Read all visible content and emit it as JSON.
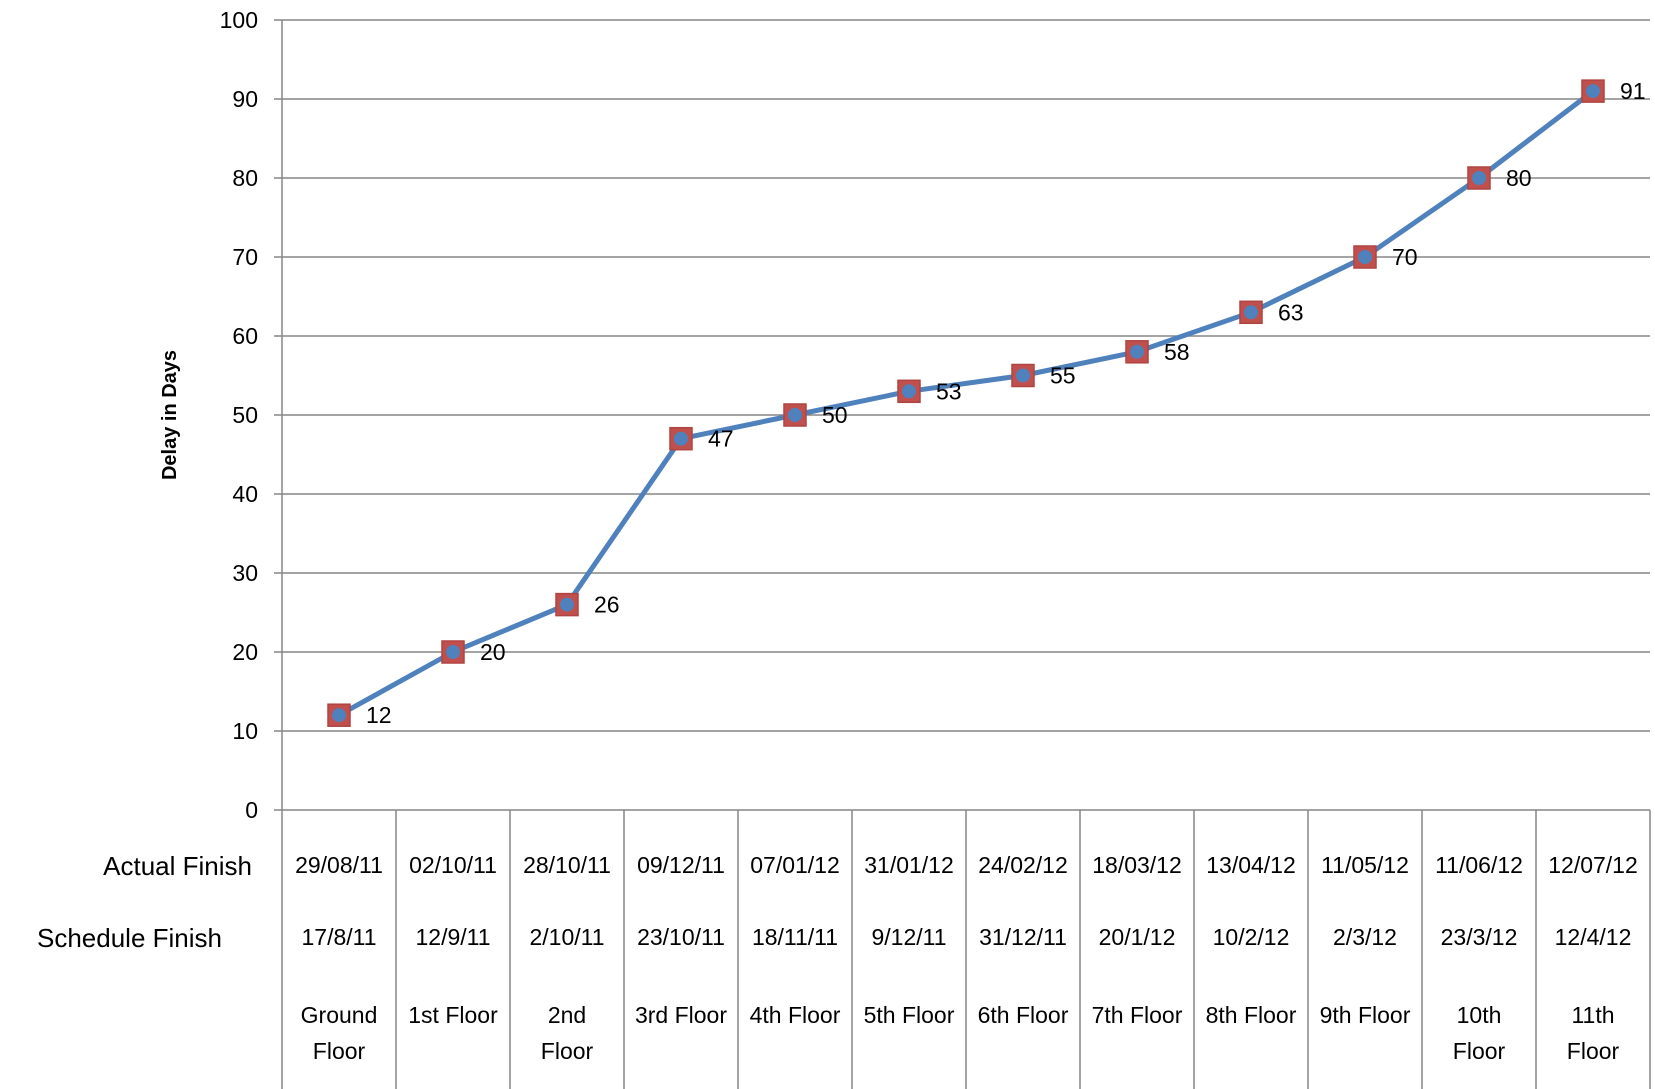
{
  "chart_data": {
    "type": "line",
    "ylabel": "Delay in Days",
    "xlabel": "",
    "ylim": [
      0,
      100
    ],
    "yticks": [
      0,
      10,
      20,
      30,
      40,
      50,
      60,
      70,
      80,
      90,
      100
    ],
    "grid": true,
    "categories": [
      "Ground Floor",
      "1st Floor",
      "2nd Floor",
      "3rd Floor",
      "4th Floor",
      "5th Floor",
      "6th Floor",
      "7th Floor",
      "8th Floor",
      "9th Floor",
      "10th Floor",
      "11th Floor"
    ],
    "category_lines": [
      [
        "Ground",
        "Floor"
      ],
      [
        "1st Floor"
      ],
      [
        "2nd",
        "Floor"
      ],
      [
        "3rd Floor"
      ],
      [
        "4th Floor"
      ],
      [
        "5th Floor"
      ],
      [
        "6th Floor"
      ],
      [
        "7th Floor"
      ],
      [
        "8th Floor"
      ],
      [
        "9th Floor"
      ],
      [
        "10th",
        "Floor"
      ],
      [
        "11th",
        "Floor"
      ]
    ],
    "series": [
      {
        "values": [
          12,
          20,
          26,
          47,
          50,
          53,
          55,
          58,
          63,
          70,
          80,
          91
        ]
      }
    ],
    "table_rows": [
      {
        "header": "Actual Finish",
        "values": [
          "29/08/11",
          "02/10/11",
          "28/10/11",
          "09/12/11",
          "07/01/12",
          "31/01/12",
          "24/02/12",
          "18/03/12",
          "13/04/12",
          "11/05/12",
          "11/06/12",
          "12/07/12"
        ]
      },
      {
        "header": "Schedule Finish",
        "values": [
          "17/8/11",
          "12/9/11",
          "2/10/11",
          "23/10/11",
          "18/11/11",
          "9/12/11",
          "31/12/11",
          "20/1/12",
          "10/2/12",
          "2/3/12",
          "23/3/12",
          "12/4/12"
        ]
      }
    ],
    "colors": {
      "line": "#4F81BD",
      "marker_outer": "#C0504D",
      "marker_inner": "#4F81BD",
      "grid": "#868686"
    }
  }
}
